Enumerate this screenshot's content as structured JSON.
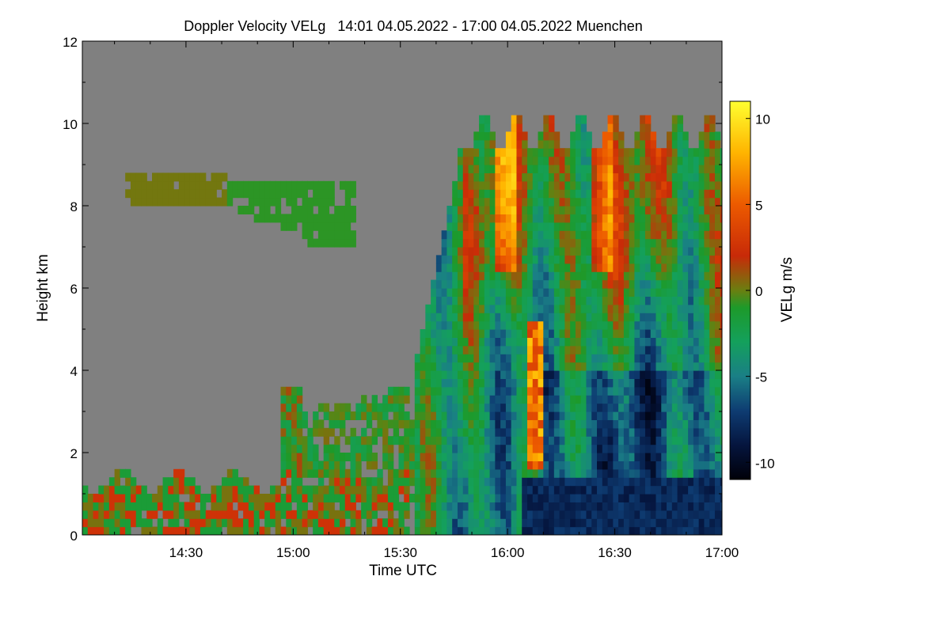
{
  "chart_data": {
    "type": "heatmap",
    "title": "Doppler Velocity VELg   14:01 04.05.2022 - 17:00 04.05.2022 Muenchen",
    "xlabel": "Time UTC",
    "ylabel": "Height km",
    "colorbar_label": "VELg m/s",
    "x_ticks": [
      {
        "label": "14:30",
        "minutes": 870
      },
      {
        "label": "15:00",
        "minutes": 900
      },
      {
        "label": "15:30",
        "minutes": 930
      },
      {
        "label": "16:00",
        "minutes": 960
      },
      {
        "label": "16:30",
        "minutes": 990
      },
      {
        "label": "17:00",
        "minutes": 1020
      }
    ],
    "xlim_minutes": [
      841,
      1020
    ],
    "y_ticks": [
      0,
      2,
      4,
      6,
      8,
      10,
      12
    ],
    "ylim": [
      0,
      12
    ],
    "colorbar_ticks": [
      10,
      5,
      0,
      -5,
      -10
    ],
    "colorbar_range": [
      -11,
      11
    ],
    "colormap": [
      {
        "v": -11,
        "color": "#000008"
      },
      {
        "v": -9,
        "color": "#05153e"
      },
      {
        "v": -7,
        "color": "#0e3c72"
      },
      {
        "v": -5,
        "color": "#1a7f86"
      },
      {
        "v": -3,
        "color": "#14a05c"
      },
      {
        "v": -1,
        "color": "#1d9a2a"
      },
      {
        "v": 0,
        "color": "#6a7f10"
      },
      {
        "v": 2,
        "color": "#c82a08"
      },
      {
        "v": 5,
        "color": "#ec5a00"
      },
      {
        "v": 8,
        "color": "#ffb400"
      },
      {
        "v": 11,
        "color": "#ffff30"
      }
    ],
    "no_signal_color": "#808080",
    "regions": [
      {
        "name": "boundary layer",
        "t_start": 841,
        "t_end": 930,
        "h_min": 0,
        "h_max": 1.4,
        "velocity_range": [
          -3,
          3
        ]
      },
      {
        "name": "cirrus band",
        "t_start": 853,
        "t_end": 918,
        "h_min": 7.0,
        "h_max": 8.8,
        "velocity_range": [
          -2,
          1
        ]
      },
      {
        "name": "convective cell",
        "t_start": 939,
        "t_end": 1020,
        "h_min": 0,
        "h_max": 10.4,
        "velocity_range": [
          -10,
          10
        ]
      },
      {
        "name": "downdraft",
        "t_start": 964,
        "t_end": 1020,
        "h_min": 0,
        "h_max": 1.5,
        "velocity_range": [
          -10,
          -6
        ]
      }
    ]
  }
}
